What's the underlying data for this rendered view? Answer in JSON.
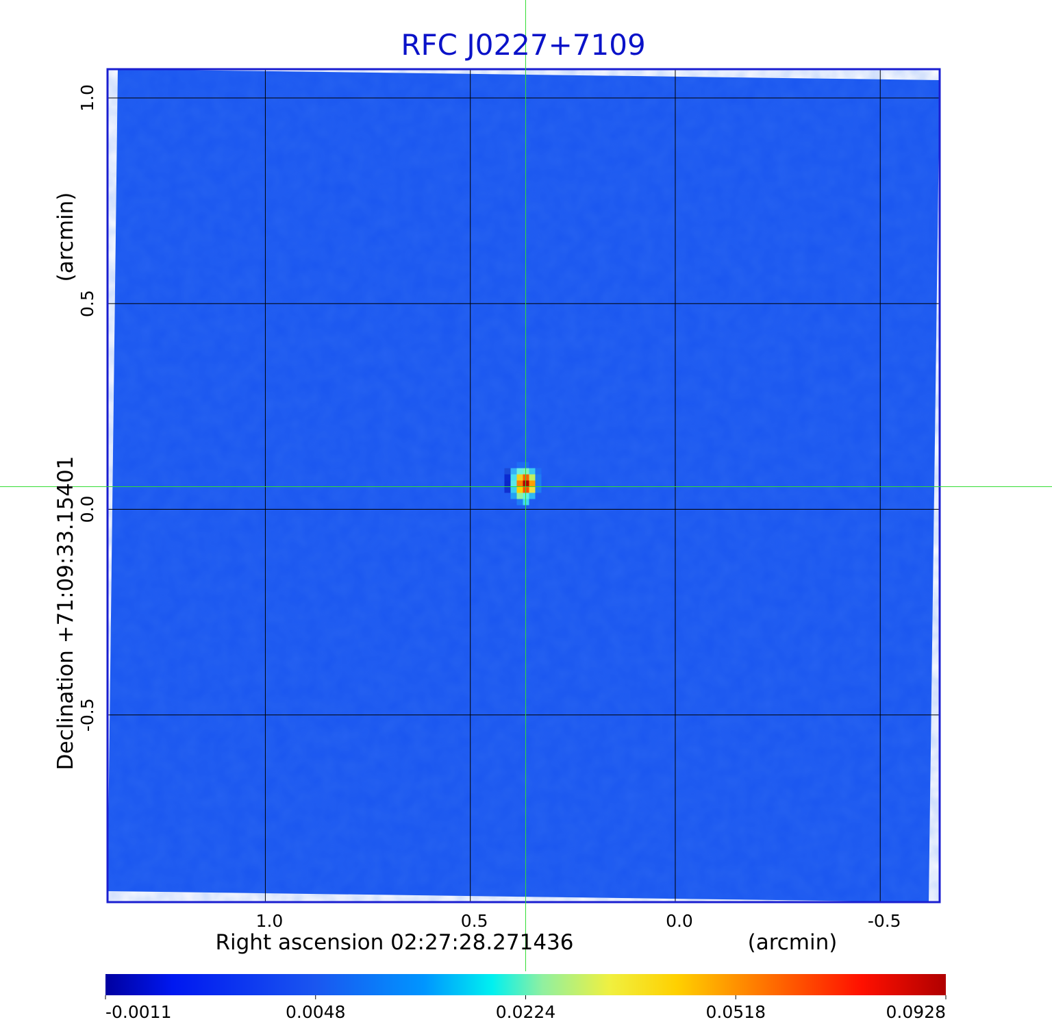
{
  "chart_data": {
    "type": "heatmap",
    "title": "RFC J0227+7109",
    "xlabel": "Right ascension  02:27:28.271436",
    "xunit": "(arcmin)",
    "ylabel": "Declination  +71:09:33.15401",
    "yunit": "(arcmin)",
    "xlim": [
      1.385,
      -0.645
    ],
    "ylim": [
      -0.955,
      1.07
    ],
    "x_ticks": [
      {
        "value": 1.0,
        "label": "1.0"
      },
      {
        "value": 0.5,
        "label": "0.5"
      },
      {
        "value": 0.0,
        "label": "0.0"
      },
      {
        "value": -0.5,
        "label": "-0.5"
      }
    ],
    "y_ticks": [
      {
        "value": 1.0,
        "label": "1.0"
      },
      {
        "value": 0.5,
        "label": "0.5"
      },
      {
        "value": 0.0,
        "label": "0.0"
      },
      {
        "value": -0.5,
        "label": "-0.5"
      }
    ],
    "grid": true,
    "source_peak": {
      "x": 0.365,
      "y": 0.055,
      "value": 0.0928
    },
    "crosshair": {
      "x": 0.365,
      "y": 0.055
    },
    "colorbar": {
      "orientation": "horizontal",
      "min": -0.0011,
      "max": 0.0928,
      "tick_labels": [
        "-0.0011",
        "0.0048",
        "0.0224",
        "0.0518",
        "0.0928"
      ]
    },
    "colors": {
      "title": "#0a12c8",
      "frame": "#1a1ed0",
      "background_field": "#1a56f0",
      "grid": "#000000",
      "crosshair": "#33dd33"
    },
    "colormap": [
      "#0000a0",
      "#0018f0",
      "#1a56f0",
      "#0096ff",
      "#00f0f0",
      "#90f0a0",
      "#f0f040",
      "#ffd000",
      "#ff8000",
      "#ff1000",
      "#b00000"
    ]
  }
}
